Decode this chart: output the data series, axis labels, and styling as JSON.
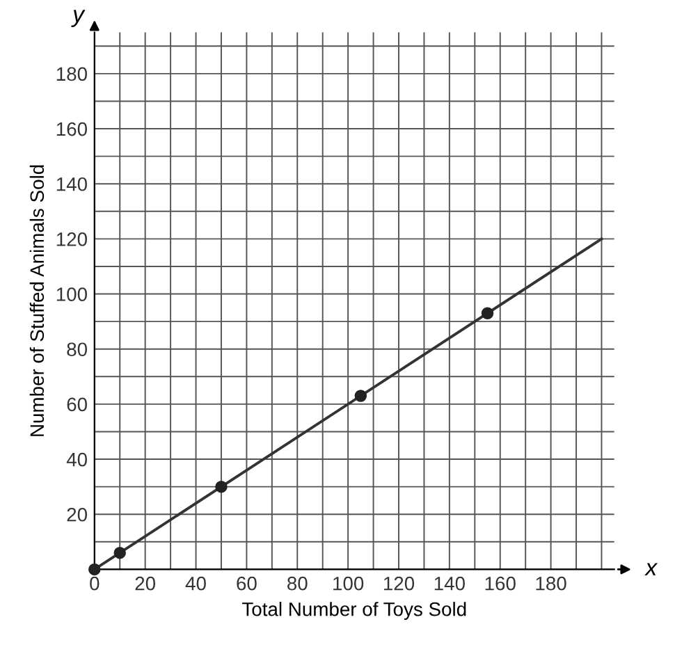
{
  "chart_data": {
    "type": "line",
    "xlabel": "Total Number of Toys Sold",
    "ylabel": "Number of Stuffed Animals Sold",
    "annotations": [
      {
        "text": "x"
      },
      {
        "text": "y"
      }
    ],
    "series": [
      {
        "color": "#333333",
        "x": [
          0,
          200
        ],
        "values": [
          0,
          120
        ],
        "marker": "none"
      },
      {
        "type": "scatter",
        "color": "#222222",
        "x": [
          0,
          10,
          50,
          105,
          155
        ],
        "values": [
          0,
          6,
          30,
          63,
          93
        ],
        "marker": "circle"
      }
    ],
    "xlim": [
      0,
      205
    ],
    "ylim": [
      0,
      195
    ],
    "xticks": [
      {
        "value": 0,
        "label": "0"
      },
      {
        "value": 10,
        "label": null
      },
      20,
      {
        "value": 30,
        "label": null
      },
      40,
      {
        "value": 50,
        "label": null
      },
      60,
      {
        "value": 70,
        "label": null
      },
      80,
      {
        "value": 90,
        "label": null
      },
      100,
      {
        "value": 110,
        "label": null
      },
      120,
      {
        "value": 130,
        "label": null
      },
      140,
      {
        "value": 150,
        "label": null
      },
      160,
      {
        "value": 170,
        "label": null
      },
      180,
      {
        "value": 190,
        "label": null
      },
      {
        "value": 200,
        "label": null
      }
    ],
    "yticks": [
      {
        "value": 0,
        "label": null
      },
      {
        "value": 10,
        "label": null
      },
      20,
      {
        "value": 30,
        "label": null
      },
      40,
      {
        "value": 50,
        "label": null
      },
      60,
      {
        "value": 70,
        "label": null
      },
      80,
      {
        "value": 90,
        "label": null
      },
      100,
      {
        "value": 110,
        "label": null
      },
      120,
      {
        "value": 130,
        "label": null
      },
      140,
      {
        "value": 150,
        "label": null
      },
      160,
      {
        "value": 170,
        "label": null
      },
      180,
      {
        "value": 190,
        "label": null
      }
    ],
    "grid": true
  }
}
